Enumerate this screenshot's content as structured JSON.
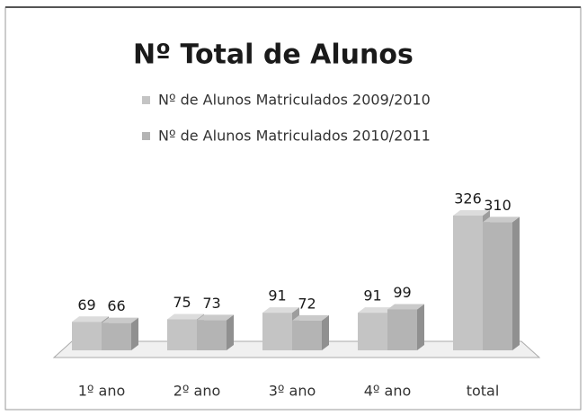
{
  "chart_data": {
    "type": "bar3d",
    "title": "Nº Total de Alunos",
    "categories": [
      "1º ano",
      "2º ano",
      "3º ano",
      "4º ano",
      "total"
    ],
    "series": [
      {
        "name": "Nº de Alunos Matriculados 2009/2010",
        "color": "#c4c4c4",
        "values": [
          69,
          75,
          91,
          91,
          326
        ]
      },
      {
        "name": "Nº de Alunos Matriculados 2010/2011",
        "color": "#b4b4b4",
        "values": [
          66,
          73,
          72,
          99,
          310
        ]
      }
    ]
  }
}
